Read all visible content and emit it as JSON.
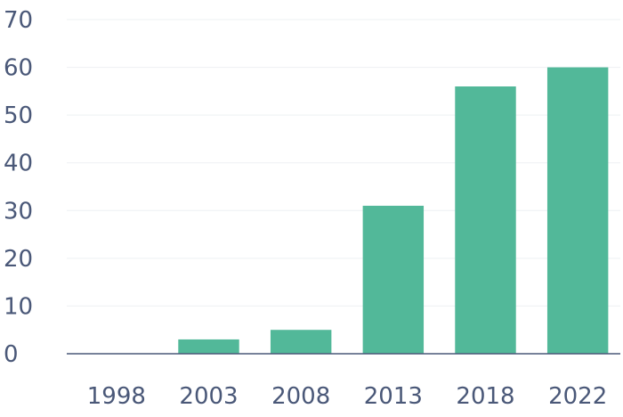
{
  "chart_data": {
    "type": "bar",
    "title": "",
    "xlabel": "",
    "ylabel": "",
    "categories": [
      "1998",
      "2003",
      "2008",
      "2013",
      "2018",
      "2022"
    ],
    "values": [
      0,
      3,
      5,
      31,
      56,
      60
    ],
    "ylim": [
      0,
      70
    ],
    "yticks": [
      "0",
      "10",
      "20",
      "30",
      "40",
      "50",
      "60",
      "70"
    ],
    "grid": true,
    "bar_color": "#52b899",
    "text_color": "#4a5878",
    "grid_color": "#eef0f3"
  }
}
